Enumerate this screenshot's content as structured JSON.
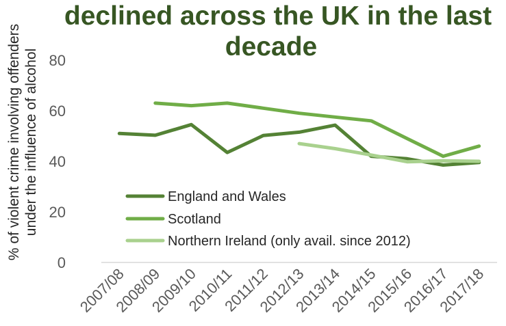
{
  "chart_data": {
    "type": "line",
    "title_lines": [
      "declined across the UK in the last",
      "decade"
    ],
    "ylabel_lines": [
      "% of violent crime involving offenders",
      "under the influence of alcohol"
    ],
    "xlabel": "",
    "categories": [
      "2007/08",
      "2008/09",
      "2009/10",
      "2010/11",
      "2011/12",
      "2012/13",
      "2013/14",
      "2014/15",
      "2015/16",
      "2016/17",
      "2017/18"
    ],
    "ylim": [
      0,
      80
    ],
    "yticks": [
      "0",
      "20",
      "40",
      "60",
      "80"
    ],
    "grid": false,
    "legend_position": "bottom-left",
    "series": [
      {
        "name": "England and Wales",
        "color": "#548235",
        "values": [
          51,
          50.3,
          54.5,
          43.5,
          50.2,
          51.5,
          54.3,
          42,
          41,
          38.5,
          39.5
        ]
      },
      {
        "name": "Scotland",
        "color": "#70AD47",
        "values": [
          null,
          63,
          62,
          63,
          61,
          59,
          57.5,
          56,
          49,
          42,
          46
        ]
      },
      {
        "name": "Northern Ireland (only avail. since 2012)",
        "color": "#A9D18E",
        "values": [
          null,
          null,
          null,
          null,
          null,
          47,
          45,
          42.5,
          39.8,
          40.2,
          40
        ]
      }
    ]
  }
}
